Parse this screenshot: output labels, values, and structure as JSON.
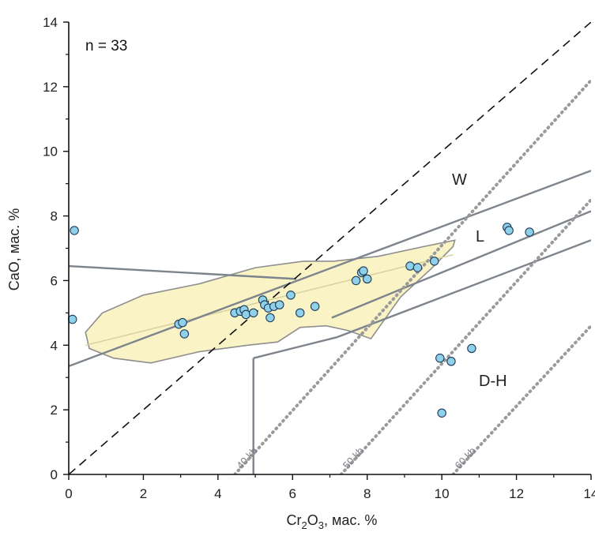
{
  "chart_data": {
    "type": "scatter",
    "xlabel_main": "Cr",
    "xlabel_sub1": "2",
    "xlabel_mid": "O",
    "xlabel_sub2": "3",
    "xlabel_tail": ", мас. %",
    "ylabel": "CaO, мас. %",
    "xlim": [
      0,
      14
    ],
    "ylim": [
      0,
      14
    ],
    "x_ticks": [
      "0",
      "2",
      "4",
      "6",
      "8",
      "10",
      "12",
      "14"
    ],
    "y_ticks": [
      "0",
      "2",
      "4",
      "6",
      "8",
      "10",
      "12",
      "14"
    ],
    "annotation": "n = 33",
    "field_labels": [
      "W",
      "L",
      "D-H"
    ],
    "isobar_labels": [
      "40 kb",
      "50 kb",
      "60 kb"
    ],
    "colors": {
      "point_fill": "#8fd0ea",
      "point_stroke": "#1f3b57",
      "field_fill": "#f9f3c6",
      "field_stroke": "#8e8e8e",
      "boundary": "#7d848c",
      "isobar": "#9a9a9a"
    },
    "points": [
      {
        "x": 0.15,
        "y": 7.55
      },
      {
        "x": 0.1,
        "y": 4.8
      },
      {
        "x": 2.95,
        "y": 4.65
      },
      {
        "x": 3.05,
        "y": 4.7
      },
      {
        "x": 3.1,
        "y": 4.35
      },
      {
        "x": 4.45,
        "y": 5.0
      },
      {
        "x": 4.6,
        "y": 5.05
      },
      {
        "x": 4.7,
        "y": 5.1
      },
      {
        "x": 4.75,
        "y": 4.95
      },
      {
        "x": 4.95,
        "y": 5.0
      },
      {
        "x": 5.2,
        "y": 5.4
      },
      {
        "x": 5.25,
        "y": 5.25
      },
      {
        "x": 5.35,
        "y": 5.15
      },
      {
        "x": 5.4,
        "y": 4.85
      },
      {
        "x": 5.5,
        "y": 5.2
      },
      {
        "x": 5.65,
        "y": 5.25
      },
      {
        "x": 5.95,
        "y": 5.55
      },
      {
        "x": 6.2,
        "y": 5.0
      },
      {
        "x": 6.6,
        "y": 5.2
      },
      {
        "x": 7.7,
        "y": 6.0
      },
      {
        "x": 7.85,
        "y": 6.25
      },
      {
        "x": 7.9,
        "y": 6.3
      },
      {
        "x": 8.0,
        "y": 6.05
      },
      {
        "x": 9.15,
        "y": 6.45
      },
      {
        "x": 9.35,
        "y": 6.4
      },
      {
        "x": 9.8,
        "y": 6.6
      },
      {
        "x": 11.75,
        "y": 7.65
      },
      {
        "x": 11.8,
        "y": 7.55
      },
      {
        "x": 12.35,
        "y": 7.5
      },
      {
        "x": 9.95,
        "y": 3.6
      },
      {
        "x": 10.25,
        "y": 3.5
      },
      {
        "x": 10.8,
        "y": 3.9
      },
      {
        "x": 10.0,
        "y": 1.9
      }
    ],
    "field_outline": [
      [
        0.45,
        4.4
      ],
      [
        0.9,
        5.0
      ],
      [
        2.0,
        5.55
      ],
      [
        3.5,
        5.9
      ],
      [
        5.0,
        6.4
      ],
      [
        6.3,
        6.6
      ],
      [
        7.1,
        6.6
      ],
      [
        8.3,
        6.75
      ],
      [
        9.5,
        7.05
      ],
      [
        10.35,
        7.25
      ],
      [
        10.3,
        7.05
      ],
      [
        9.7,
        6.35
      ],
      [
        8.9,
        5.5
      ],
      [
        8.1,
        4.2
      ],
      [
        7.5,
        4.45
      ],
      [
        6.9,
        4.6
      ],
      [
        6.2,
        4.55
      ],
      [
        5.6,
        4.1
      ],
      [
        4.8,
        4.0
      ],
      [
        3.5,
        3.8
      ],
      [
        2.2,
        3.45
      ],
      [
        1.2,
        3.6
      ],
      [
        0.55,
        3.9
      ],
      [
        0.45,
        4.4
      ]
    ],
    "field_trend": [
      [
        0.45,
        4.0
      ],
      [
        10.3,
        6.8
      ]
    ],
    "lines": {
      "diagonal": [
        [
          0,
          0
        ],
        [
          14,
          14
        ]
      ],
      "upper_horizontal": [
        [
          0,
          6.45
        ],
        [
          6.1,
          6.05
        ]
      ],
      "lower_oblique": [
        [
          0,
          3.35
        ],
        [
          14,
          9.4
        ]
      ],
      "L_upper": [
        [
          7.05,
          4.85
        ],
        [
          14,
          8.15
        ]
      ],
      "L_lower": [
        [
          7.2,
          4.25
        ],
        [
          14,
          7.25
        ]
      ],
      "left_vertical": [
        [
          4.95,
          0
        ],
        [
          4.95,
          3.6
        ]
      ],
      "left_connector": [
        [
          4.95,
          3.6
        ],
        [
          7.2,
          4.25
        ]
      ]
    },
    "isobars": [
      {
        "label": "40 kb",
        "from": [
          4.45,
          0
        ],
        "to": [
          14,
          12.2
        ]
      },
      {
        "label": "50 kb",
        "from": [
          7.3,
          0
        ],
        "to": [
          14,
          8.5
        ]
      },
      {
        "label": "60 kb",
        "from": [
          10.3,
          0
        ],
        "to": [
          14,
          4.6
        ]
      }
    ]
  }
}
